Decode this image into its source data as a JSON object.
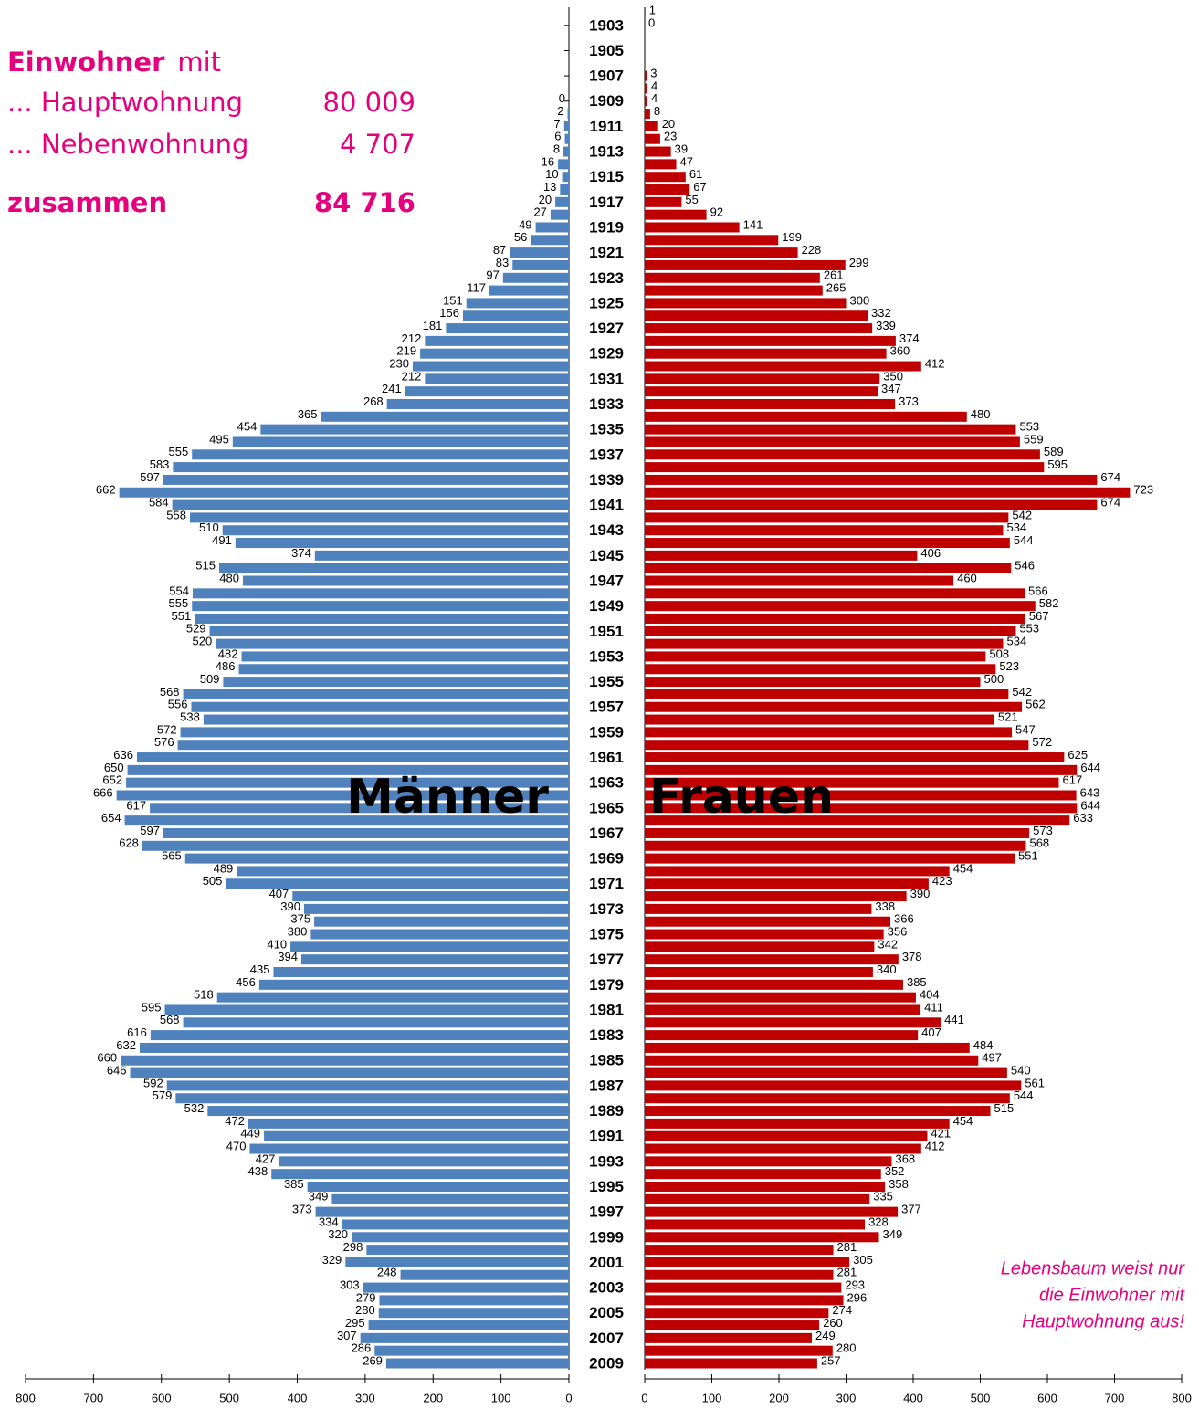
{
  "chart_data": {
    "type": "pyramid",
    "categories": [
      null,
      1903,
      null,
      1905,
      null,
      1907,
      null,
      1909,
      null,
      1911,
      null,
      1913,
      null,
      1915,
      null,
      1917,
      null,
      1919,
      null,
      1921,
      null,
      1923,
      null,
      1925,
      null,
      1927,
      null,
      1929,
      null,
      1931,
      null,
      1933,
      null,
      1935,
      null,
      1937,
      null,
      1939,
      null,
      1941,
      null,
      1943,
      null,
      1945,
      null,
      1947,
      null,
      1949,
      null,
      1951,
      null,
      1953,
      null,
      1955,
      null,
      1957,
      null,
      1959,
      null,
      1961,
      null,
      1963,
      null,
      1965,
      null,
      1967,
      null,
      1969,
      null,
      1971,
      null,
      1973,
      null,
      1975,
      null,
      1977,
      null,
      1979,
      null,
      1981,
      null,
      1983,
      null,
      1985,
      null,
      1987,
      null,
      1989,
      null,
      1991,
      null,
      1993,
      null,
      1995,
      null,
      1997,
      null,
      1999,
      null,
      2001,
      null,
      2003,
      null,
      2005,
      null,
      2007,
      null,
      2009
    ],
    "series": [
      {
        "name": "Männer",
        "color": "#4f81bd",
        "side": "left",
        "values": [
          null,
          null,
          null,
          null,
          null,
          null,
          null,
          0,
          2,
          7,
          6,
          8,
          16,
          10,
          13,
          20,
          27,
          49,
          56,
          87,
          83,
          97,
          117,
          151,
          156,
          181,
          212,
          219,
          230,
          212,
          241,
          268,
          365,
          454,
          495,
          555,
          583,
          597,
          662,
          584,
          558,
          510,
          491,
          374,
          515,
          480,
          554,
          555,
          551,
          529,
          520,
          482,
          486,
          509,
          568,
          556,
          538,
          572,
          576,
          636,
          650,
          652,
          666,
          617,
          654,
          597,
          628,
          565,
          489,
          505,
          407,
          390,
          375,
          380,
          410,
          394,
          435,
          456,
          518,
          595,
          568,
          616,
          632,
          660,
          646,
          592,
          579,
          532,
          472,
          449,
          470,
          427,
          438,
          385,
          349,
          373,
          334,
          320,
          298,
          329,
          248,
          303,
          279,
          280,
          295,
          307,
          286,
          269
        ]
      },
      {
        "name": "Frauen",
        "color": "#c00000",
        "side": "right",
        "values": [
          1,
          0,
          null,
          null,
          null,
          3,
          4,
          4,
          8,
          20,
          23,
          39,
          47,
          61,
          67,
          55,
          92,
          141,
          199,
          228,
          299,
          261,
          265,
          300,
          332,
          339,
          374,
          360,
          412,
          350,
          347,
          373,
          480,
          553,
          559,
          589,
          595,
          674,
          723,
          674,
          542,
          534,
          544,
          406,
          546,
          460,
          566,
          582,
          567,
          553,
          534,
          508,
          523,
          500,
          542,
          562,
          521,
          547,
          572,
          625,
          644,
          617,
          643,
          644,
          633,
          573,
          568,
          551,
          454,
          423,
          390,
          338,
          366,
          356,
          342,
          378,
          340,
          385,
          404,
          411,
          441,
          407,
          484,
          497,
          540,
          561,
          544,
          515,
          454,
          421,
          412,
          368,
          352,
          358,
          335,
          377,
          328,
          349,
          281,
          305,
          281,
          293,
          296,
          274,
          260,
          249,
          280,
          257
        ]
      }
    ],
    "xlim": [
      0,
      800
    ],
    "xticks": [
      0,
      100,
      200,
      300,
      400,
      500,
      600,
      700,
      800
    ],
    "info": {
      "title_bold": "Einwohner",
      "title_rest": "mit",
      "rows": [
        {
          "label": "... Hauptwohnung",
          "value": "80 009"
        },
        {
          "label": "... Nebenwohnung",
          "value": "4 707"
        }
      ],
      "total": {
        "label": "zusammen",
        "value": "84 716"
      }
    },
    "annotation": [
      "Lebensbaum weist nur",
      "die Einwohner mit",
      "Hauptwohnung aus!"
    ]
  }
}
